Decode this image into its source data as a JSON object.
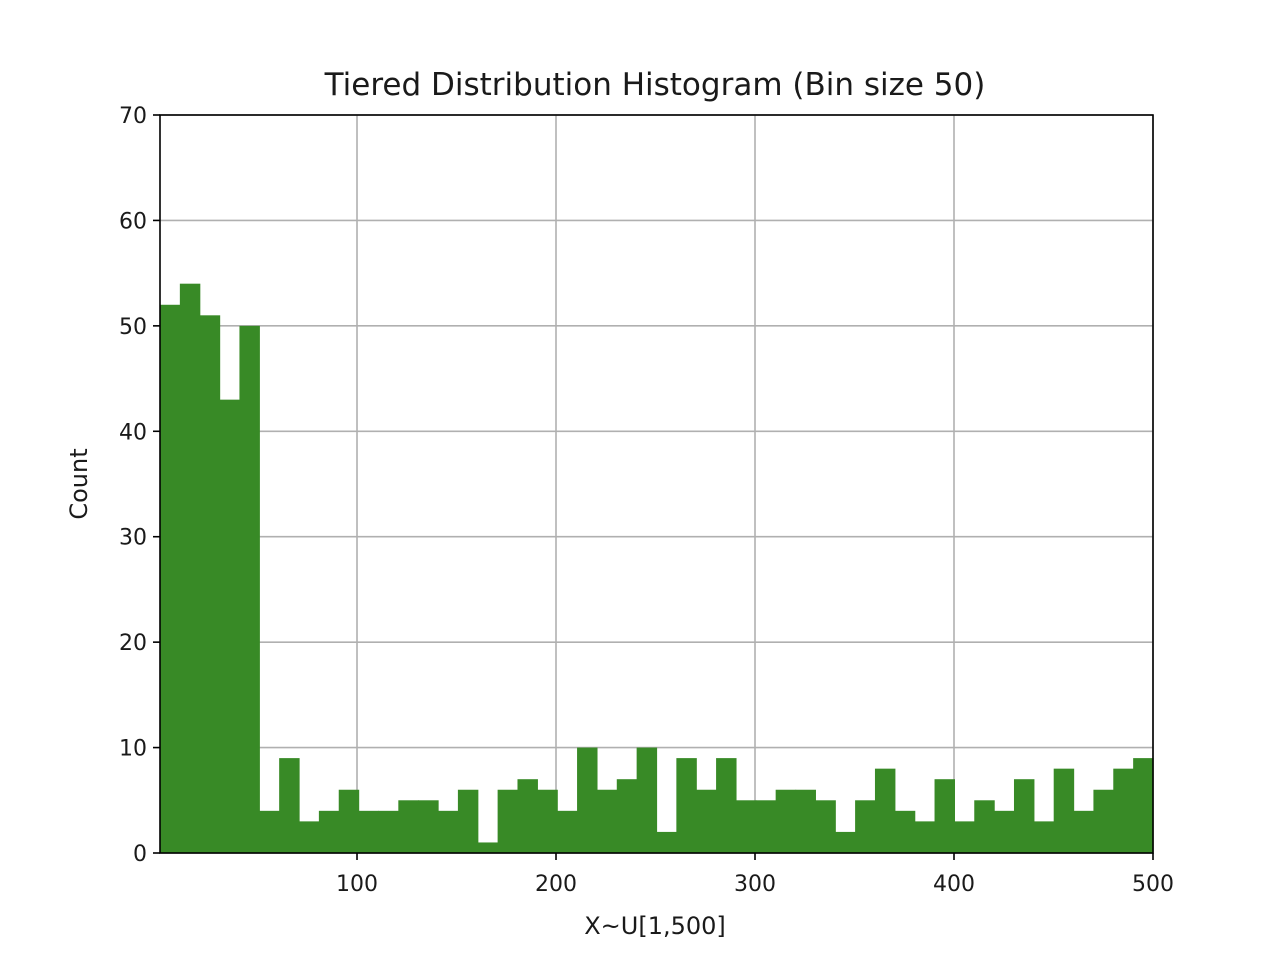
{
  "chart_data": {
    "type": "bar",
    "title": "Tiered Distribution Histogram (Bin size 50)",
    "xlabel": "X~U[1,500]",
    "ylabel": "Count",
    "xlim": [
      1,
      500
    ],
    "ylim": [
      0,
      70
    ],
    "grid": true,
    "bar_color": "#388a26",
    "bin_edges_start": 1,
    "bin_width": 9.98,
    "x_ticks": [
      {
        "value": 100,
        "label": "100"
      },
      {
        "value": 200,
        "label": "200"
      },
      {
        "value": 300,
        "label": "300"
      },
      {
        "value": 400,
        "label": "400"
      },
      {
        "value": 500,
        "label": "500"
      }
    ],
    "y_ticks": [
      {
        "value": 0,
        "label": "0"
      },
      {
        "value": 10,
        "label": "10"
      },
      {
        "value": 20,
        "label": "20"
      },
      {
        "value": 30,
        "label": "30"
      },
      {
        "value": 40,
        "label": "40"
      },
      {
        "value": 50,
        "label": "50"
      },
      {
        "value": 60,
        "label": "60"
      },
      {
        "value": 70,
        "label": "70"
      }
    ],
    "values": [
      52,
      54,
      51,
      43,
      50,
      4,
      9,
      3,
      4,
      6,
      4,
      4,
      5,
      5,
      4,
      6,
      1,
      6,
      7,
      6,
      4,
      10,
      6,
      7,
      10,
      2,
      9,
      6,
      9,
      5,
      5,
      6,
      6,
      5,
      2,
      5,
      8,
      4,
      3,
      7,
      3,
      5,
      4,
      7,
      3,
      8,
      4,
      6,
      8,
      9
    ]
  }
}
